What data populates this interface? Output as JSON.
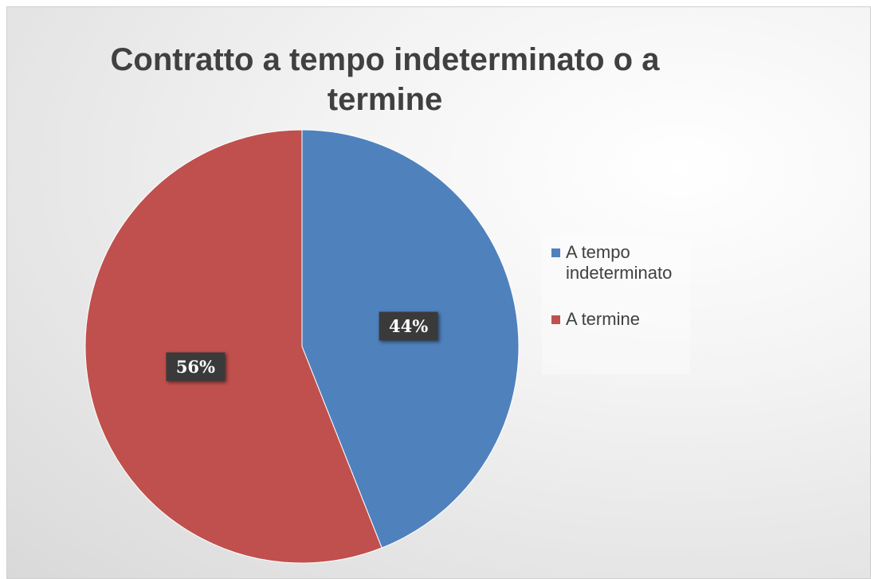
{
  "chart_data": {
    "type": "pie",
    "title": "Contratto a tempo indeterminato o a termine",
    "categories": [
      "A tempo indeterminato",
      "A termine"
    ],
    "values": [
      44,
      56
    ],
    "value_labels": [
      "44%",
      "56%"
    ],
    "colors": [
      "#4f81bd",
      "#c0504d"
    ],
    "legend": "right"
  }
}
